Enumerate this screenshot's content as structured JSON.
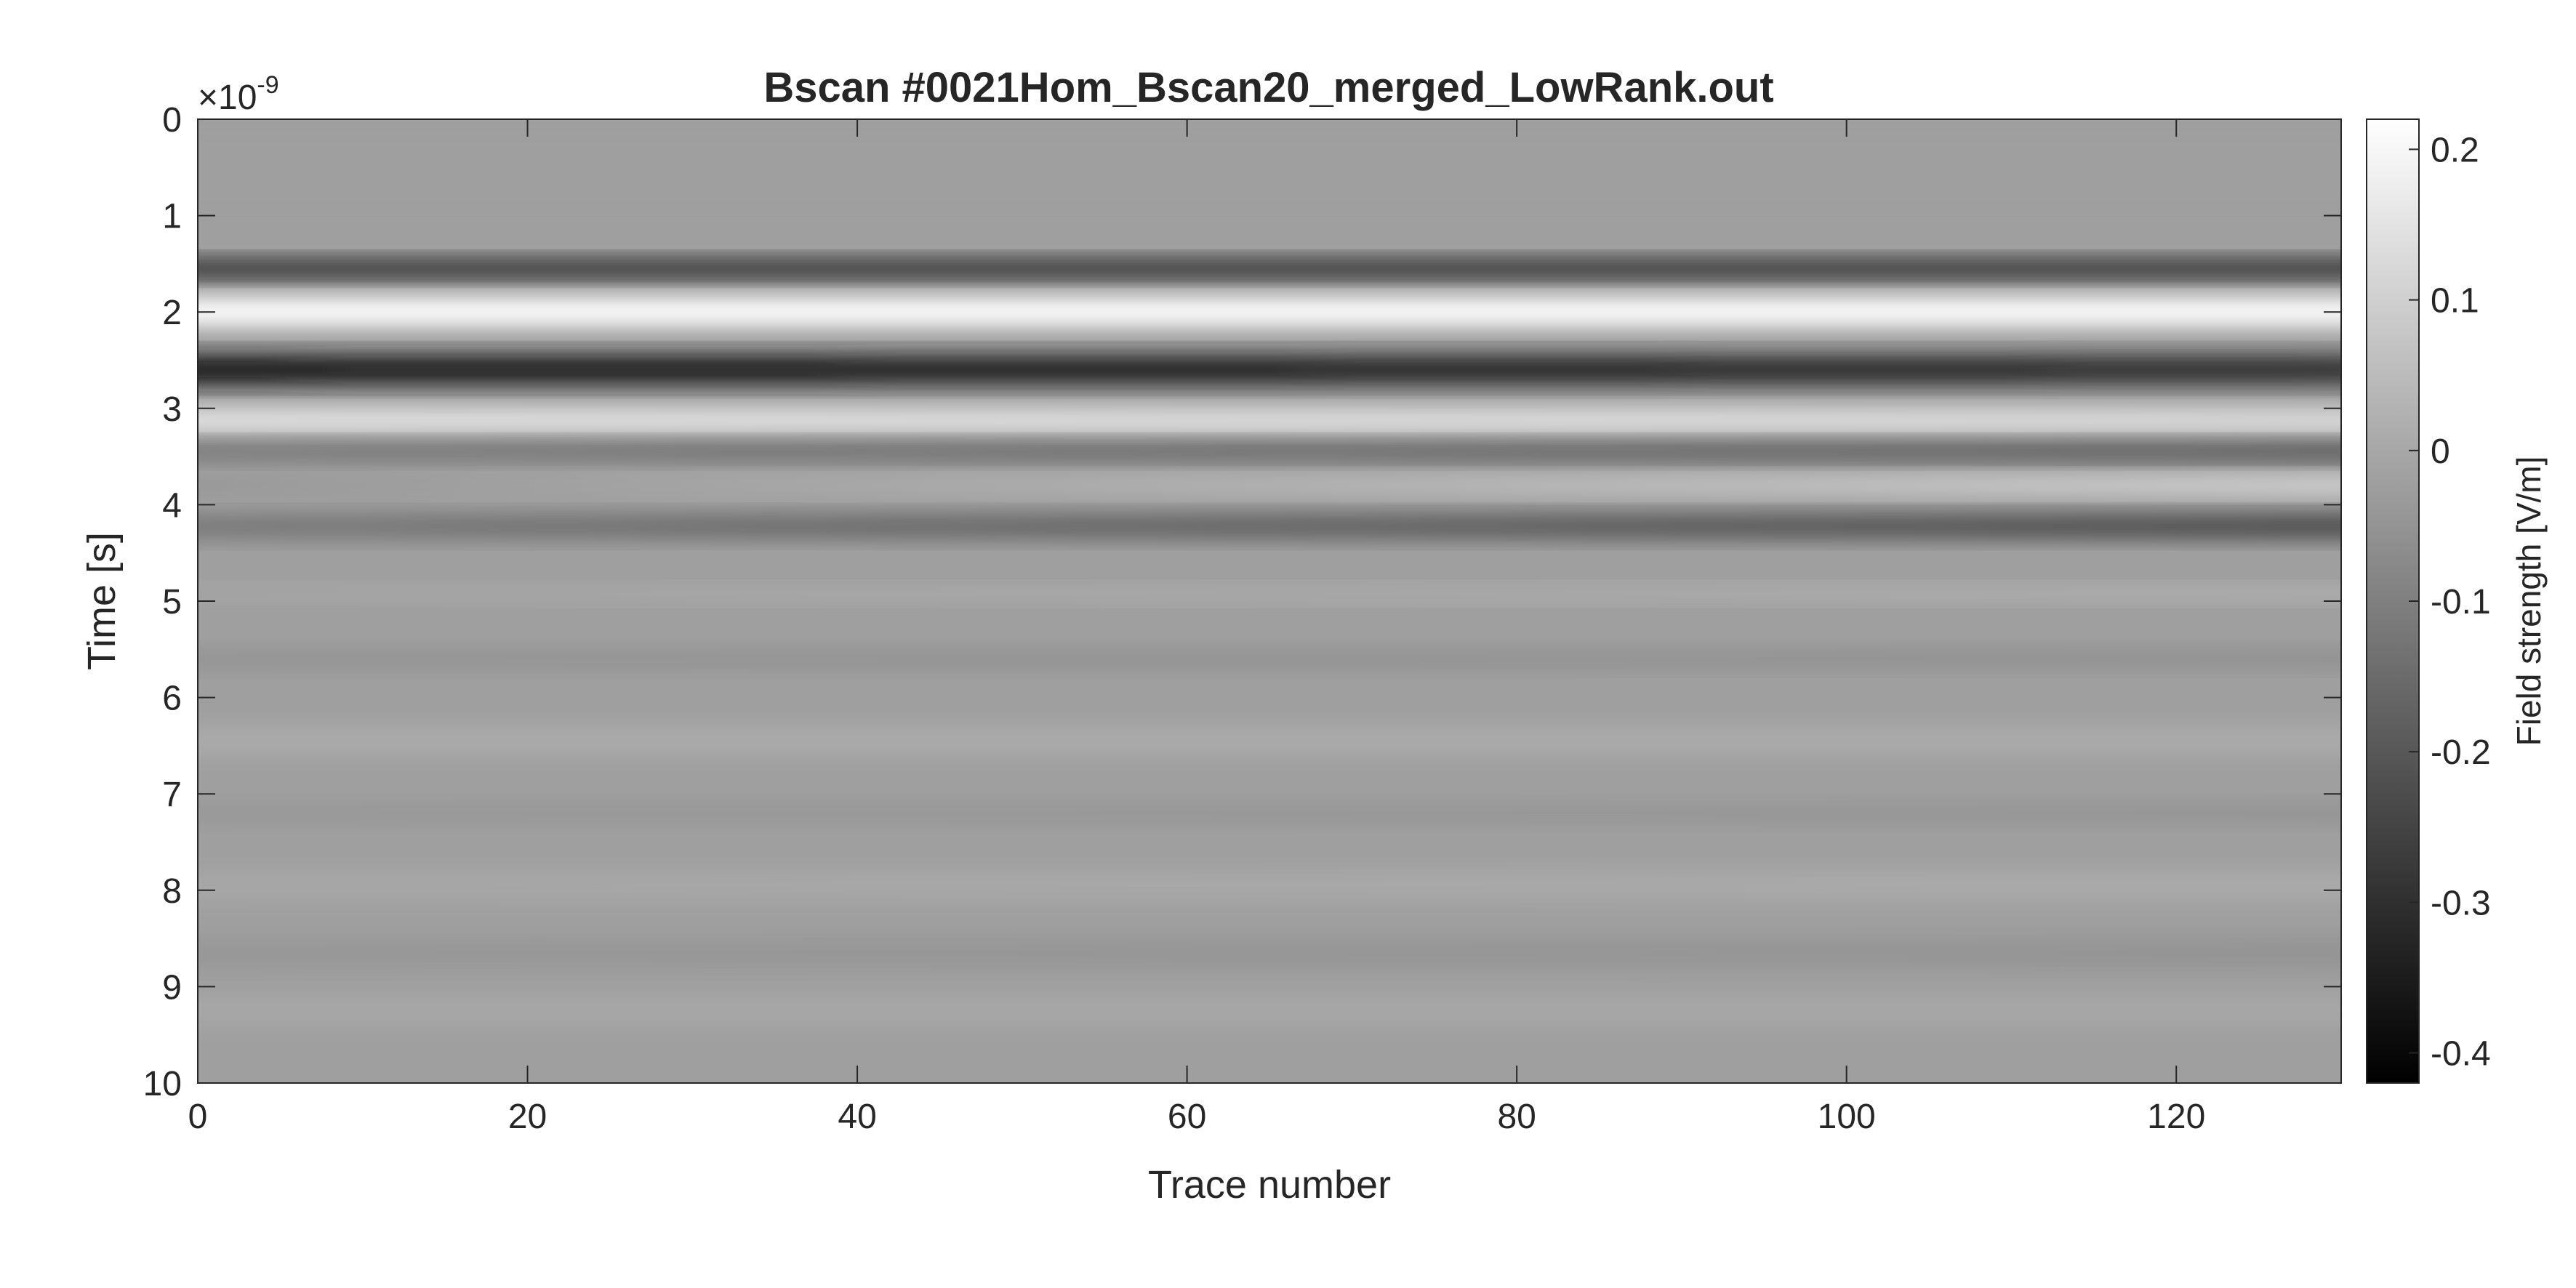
{
  "chart_data": {
    "type": "heatmap",
    "title": "Bscan #0021Hom_Bscan20_merged_LowRank.out",
    "xlabel": "Trace number",
    "ylabel": "Time [s]",
    "y_exponent": "×10",
    "y_exponent_power": "-9",
    "xlim": [
      0,
      130
    ],
    "ylim": [
      0,
      10
    ],
    "y_reversed": true,
    "x_ticks": [
      "0",
      "20",
      "40",
      "60",
      "80",
      "100",
      "120"
    ],
    "y_ticks": [
      "0",
      "1",
      "2",
      "3",
      "4",
      "5",
      "6",
      "7",
      "8",
      "9",
      "10"
    ],
    "colormap": "gray",
    "colorbar": {
      "label": "Field strength [V/m]",
      "range": [
        -0.42,
        0.22
      ],
      "ticks": [
        "0.2",
        "0.1",
        "0",
        "-0.1",
        "-0.2",
        "-0.3",
        "-0.4"
      ],
      "tick_values": [
        0.2,
        0.1,
        0,
        -0.1,
        -0.2,
        -0.3,
        -0.4
      ],
      "position": "right"
    },
    "bands": [
      {
        "t_start": 0,
        "t_end": 10,
        "value_left": -0.02,
        "value_right": -0.02
      },
      {
        "t_start": 0,
        "t_end": 1.1,
        "value_left": -0.02,
        "value_right": -0.02
      },
      {
        "t_start": 1.45,
        "t_end": 1.65,
        "value_left": -0.3,
        "value_right": -0.3
      },
      {
        "t_start": 1.85,
        "t_end": 2.15,
        "value_left": 0.22,
        "value_right": 0.22
      },
      {
        "t_start": 2.45,
        "t_end": 2.75,
        "value_left": -0.36,
        "value_right": -0.3
      },
      {
        "t_start": 3.0,
        "t_end": 3.25,
        "value_left": 0.16,
        "value_right": 0.14
      },
      {
        "t_start": 3.35,
        "t_end": 3.55,
        "value_left": -0.12,
        "value_right": -0.2
      },
      {
        "t_start": 3.7,
        "t_end": 3.9,
        "value_left": -0.04,
        "value_right": 0.12
      },
      {
        "t_start": 4.1,
        "t_end": 4.35,
        "value_left": -0.12,
        "value_right": -0.24
      },
      {
        "t_start": 4.85,
        "t_end": 5.0,
        "value_left": 0.0,
        "value_right": 0.03
      },
      {
        "t_start": 5.5,
        "t_end": 5.7,
        "value_left": -0.05,
        "value_right": -0.06
      },
      {
        "t_start": 6.3,
        "t_end": 6.6,
        "value_left": 0.01,
        "value_right": 0.01
      },
      {
        "t_start": 7.1,
        "t_end": 7.3,
        "value_left": -0.04,
        "value_right": -0.05
      },
      {
        "t_start": 7.8,
        "t_end": 8.1,
        "value_left": 0.0,
        "value_right": 0.01
      },
      {
        "t_start": 8.5,
        "t_end": 8.8,
        "value_left": -0.04,
        "value_right": -0.05
      },
      {
        "t_start": 9.1,
        "t_end": 9.4,
        "value_left": 0.0,
        "value_right": 0.0
      }
    ]
  }
}
